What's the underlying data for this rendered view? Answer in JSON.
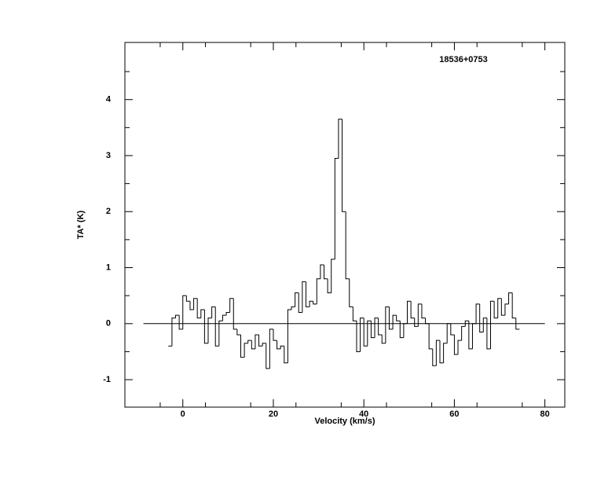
{
  "chart_data": {
    "type": "step",
    "title": "18536+0753",
    "x_label": "Velocity (km/s)",
    "y_label": "TA* (K)",
    "xlim": [
      -12.8,
      84.4
    ],
    "ylim": [
      -1.49,
      5.02
    ],
    "xticks": [
      0,
      20,
      40,
      60,
      80
    ],
    "yticks": [
      -1,
      0,
      1,
      2,
      3,
      4
    ],
    "xminor_ticks": [
      -5,
      5,
      15,
      25,
      35,
      45,
      55,
      65,
      75
    ],
    "yminor_ticks": [
      -0.5,
      0.5,
      1.5,
      2.5,
      3.5,
      4.5
    ],
    "baseline": {
      "x": [
        -8.7,
        80
      ],
      "y": 0
    },
    "color": "#000000",
    "x": [
      -2.8,
      -2.0,
      -1.2,
      -0.4,
      0.4,
      1.2,
      2.0,
      2.8,
      3.6,
      4.4,
      5.2,
      6.0,
      6.8,
      7.6,
      8.4,
      9.2,
      10.0,
      10.8,
      11.6,
      12.4,
      13.2,
      14.0,
      14.8,
      15.6,
      16.4,
      17.2,
      18.0,
      18.8,
      19.6,
      20.4,
      21.2,
      22.0,
      22.8,
      23.6,
      24.4,
      25.2,
      26.0,
      26.8,
      27.6,
      28.4,
      29.2,
      30.0,
      30.8,
      31.6,
      32.4,
      33.2,
      34.0,
      34.8,
      35.6,
      36.4,
      37.2,
      38.0,
      38.8,
      39.6,
      40.4,
      41.2,
      42.0,
      42.8,
      43.6,
      44.4,
      45.2,
      46.0,
      46.8,
      47.6,
      48.4,
      49.2,
      50.0,
      50.8,
      51.6,
      52.4,
      53.2,
      54.0,
      54.8,
      55.6,
      56.4,
      57.2,
      58.0,
      58.8,
      59.6,
      60.4,
      61.2,
      62.0,
      62.8,
      63.6,
      64.4,
      65.2,
      66.0,
      66.8,
      67.6,
      68.4,
      69.2,
      70.0,
      70.8,
      71.6,
      72.4,
      73.2,
      74.0
    ],
    "values": [
      -0.4,
      0.1,
      0.15,
      -0.1,
      0.5,
      0.4,
      0.25,
      0.45,
      0.1,
      0.25,
      -0.35,
      0.1,
      0.3,
      -0.4,
      0.05,
      0.15,
      0.2,
      0.45,
      -0.1,
      -0.2,
      -0.6,
      -0.35,
      -0.3,
      -0.45,
      -0.2,
      -0.4,
      -0.35,
      -0.8,
      -0.1,
      -0.3,
      -0.45,
      -0.4,
      -0.7,
      0.25,
      0.3,
      0.55,
      0.2,
      0.75,
      0.3,
      0.4,
      0.35,
      0.8,
      1.05,
      0.8,
      0.55,
      1.15,
      2.95,
      3.65,
      2.0,
      0.8,
      0.3,
      0.05,
      -0.5,
      0.1,
      -0.4,
      0.05,
      -0.25,
      0.1,
      -0.2,
      -0.35,
      0.3,
      -0.1,
      0.15,
      0.05,
      -0.25,
      0.0,
      0.4,
      0.1,
      -0.05,
      0.35,
      0.1,
      0.0,
      -0.45,
      -0.75,
      -0.3,
      -0.7,
      -0.35,
      0.0,
      -0.2,
      -0.55,
      -0.3,
      -0.05,
      0.05,
      -0.45,
      0.0,
      0.35,
      -0.15,
      0.1,
      -0.45,
      0.4,
      0.1,
      0.45,
      0.15,
      0.35,
      0.55,
      0.1,
      -0.1
    ]
  }
}
